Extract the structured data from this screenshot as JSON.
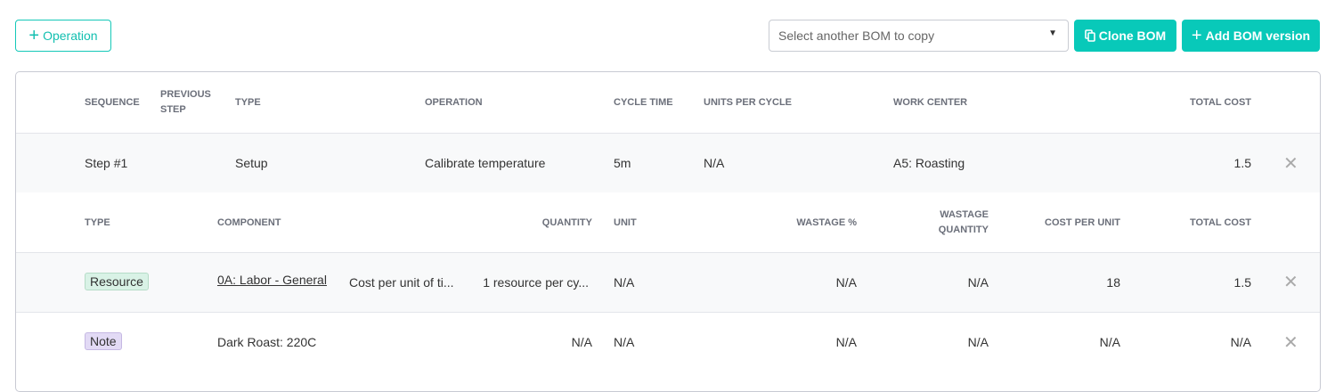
{
  "toolbar": {
    "add_operation_label": "Operation",
    "bom_select_placeholder": "Select another BOM to copy",
    "clone_label": "Clone BOM",
    "add_version_label": "Add BOM version"
  },
  "operations_table": {
    "headers": [
      "SEQUENCE",
      "PREVIOUS STEP",
      "TYPE",
      "OPERATION",
      "CYCLE TIME",
      "UNITS PER CYCLE",
      "WORK CENTER",
      "TOTAL COST"
    ],
    "rows": [
      {
        "sequence": "Step #1",
        "previous_step": "",
        "type": "Setup",
        "operation": "Calibrate temperature",
        "cycle_time": "5m",
        "units_per_cycle": "N/A",
        "work_center": "A5: Roasting",
        "total_cost": "1.5"
      }
    ]
  },
  "components_table": {
    "headers": [
      "TYPE",
      "COMPONENT",
      "QUANTITY",
      "UNIT",
      "WASTAGE %",
      "WASTAGE QUANTITY",
      "COST PER UNIT",
      "TOTAL COST"
    ],
    "rows": [
      {
        "type": "Resource",
        "type_color": "#d9f2e6",
        "component": "0A: Labor - General",
        "description": "Cost per unit of ti...",
        "quantity": "1 resource per cy...",
        "unit": "N/A",
        "wastage_pct": "N/A",
        "wastage_qty": "N/A",
        "cost_per_unit": "18",
        "total_cost": "1.5"
      },
      {
        "type": "Note",
        "type_color": "#e2daf5",
        "component": "Dark Roast: 220C",
        "quantity": "N/A",
        "unit": "N/A",
        "wastage_pct": "N/A",
        "wastage_qty": "N/A",
        "cost_per_unit": "N/A",
        "total_cost": "N/A"
      }
    ]
  },
  "colors": {
    "accent": "#08c9b9"
  }
}
